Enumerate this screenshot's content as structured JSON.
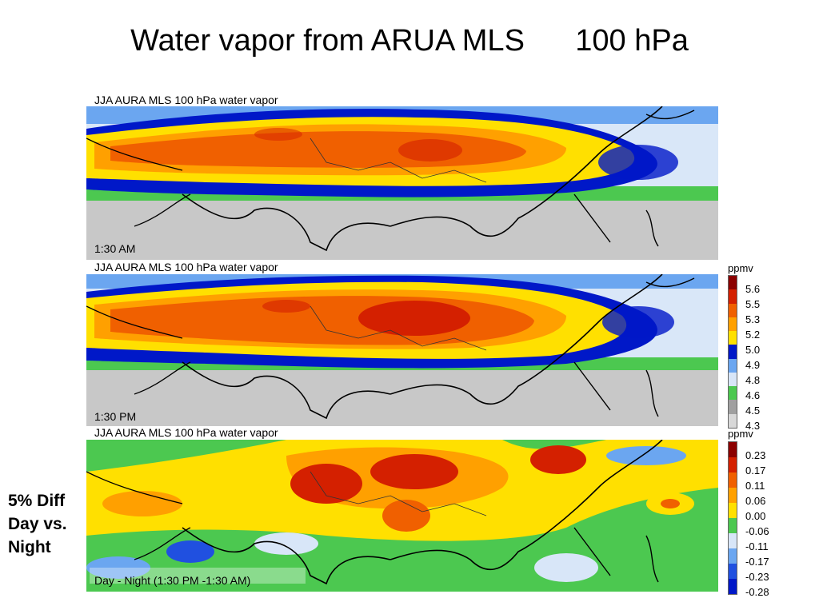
{
  "title": "Water vapor from ARUA MLS      100 hPa",
  "panels": [
    {
      "header": "JJA AURA MLS 100 hPa water vapor",
      "time_label": "1:30 AM"
    },
    {
      "header": "JJA AURA MLS 100 hPa water vapor",
      "time_label": "1:30 PM"
    },
    {
      "header": "JJA AURA MLS 100 hPa water vapor",
      "time_label": "Day - Night (1:30 PM -1:30 AM)"
    }
  ],
  "colorbar_top": {
    "unit": "ppmv",
    "ticks": [
      "5.6",
      "5.5",
      "5.3",
      "5.2",
      "5.0",
      "4.9",
      "4.8",
      "4.6",
      "4.5",
      "4.3"
    ],
    "colors": [
      "#8b0000",
      "#d42000",
      "#f06000",
      "#ffa000",
      "#ffe000",
      "#0018c8",
      "#6ba6f0",
      "#d8e6f8",
      "#4cc850",
      "#a0a0a0",
      "#d8d8d8"
    ]
  },
  "colorbar_bottom": {
    "unit": "ppmv",
    "ticks": [
      "0.23",
      "0.17",
      "0.11",
      "0.06",
      "0.00",
      "-0.06",
      "-0.11",
      "-0.17",
      "-0.23",
      "-0.28"
    ],
    "colors": [
      "#8b0000",
      "#d42000",
      "#f06000",
      "#ffa000",
      "#ffe000",
      "#4cc850",
      "#d8e6f8",
      "#6ba6f0",
      "#2050e0",
      "#0018c8"
    ]
  },
  "side_note": {
    "line1": "5% Diff",
    "line2": "Day vs.",
    "line3": "Night"
  }
}
